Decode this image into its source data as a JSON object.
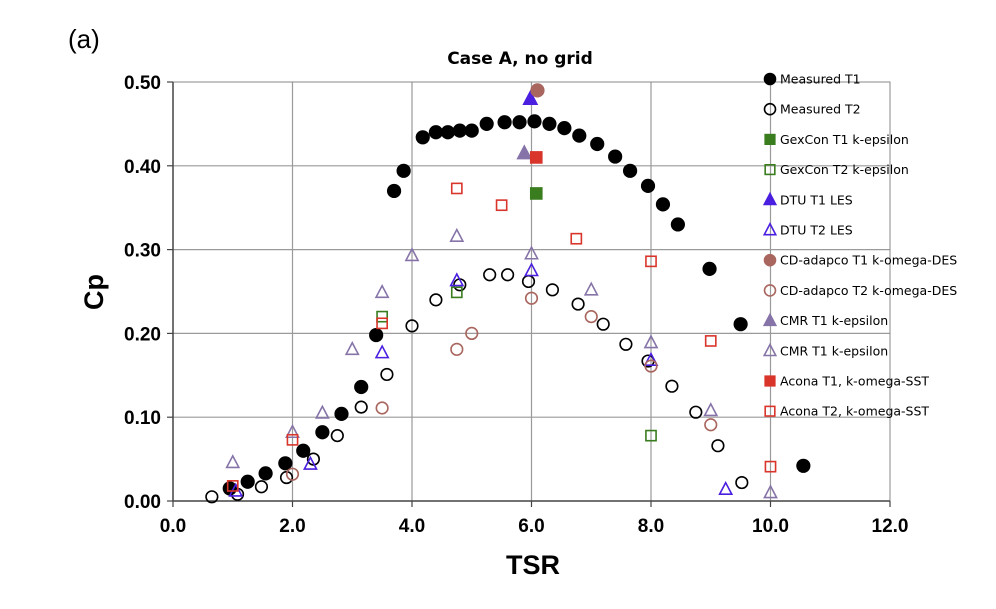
{
  "panel_label": "(a)",
  "chart_data": {
    "type": "scatter",
    "title": "Case A, no grid",
    "xlabel": "TSR",
    "ylabel": "Cp",
    "xlim": [
      0,
      12
    ],
    "ylim": [
      0,
      0.5
    ],
    "x_ticks": [
      0,
      2,
      4,
      6,
      8,
      10,
      12
    ],
    "y_ticks": [
      0,
      0.1,
      0.2,
      0.3,
      0.4,
      0.5
    ],
    "x_tick_labels": [
      "0.0",
      "2.0",
      "4.0",
      "6.0",
      "8.0",
      "10.0",
      "12.0"
    ],
    "y_tick_labels": [
      "0.00",
      "0.10",
      "0.20",
      "0.30",
      "0.40",
      "0.50"
    ],
    "grid": true,
    "legend_position": "right",
    "series": [
      {
        "name": "Measured T1",
        "marker": "circle",
        "filled": true,
        "color": "#000000",
        "points": [
          [
            0.95,
            0.015
          ],
          [
            1.25,
            0.023
          ],
          [
            1.55,
            0.033
          ],
          [
            1.88,
            0.045
          ],
          [
            2.18,
            0.06
          ],
          [
            2.5,
            0.082
          ],
          [
            2.82,
            0.104
          ],
          [
            3.15,
            0.136
          ],
          [
            3.4,
            0.198
          ],
          [
            3.7,
            0.37
          ],
          [
            3.86,
            0.394
          ],
          [
            4.18,
            0.434
          ],
          [
            4.4,
            0.44
          ],
          [
            4.6,
            0.44
          ],
          [
            4.8,
            0.442
          ],
          [
            5.0,
            0.442
          ],
          [
            5.25,
            0.45
          ],
          [
            5.55,
            0.452
          ],
          [
            5.8,
            0.452
          ],
          [
            6.05,
            0.453
          ],
          [
            6.3,
            0.45
          ],
          [
            6.55,
            0.445
          ],
          [
            6.8,
            0.436
          ],
          [
            7.1,
            0.426
          ],
          [
            7.4,
            0.411
          ],
          [
            7.65,
            0.394
          ],
          [
            7.95,
            0.376
          ],
          [
            8.2,
            0.354
          ],
          [
            8.45,
            0.33
          ],
          [
            8.98,
            0.277
          ],
          [
            9.5,
            0.211
          ],
          [
            10.55,
            0.042
          ]
        ]
      },
      {
        "name": "Measured T2",
        "marker": "circle",
        "filled": false,
        "color": "#000000",
        "points": [
          [
            0.65,
            0.005
          ],
          [
            1.08,
            0.008
          ],
          [
            1.48,
            0.017
          ],
          [
            1.9,
            0.028
          ],
          [
            2.35,
            0.05
          ],
          [
            2.75,
            0.078
          ],
          [
            3.15,
            0.112
          ],
          [
            3.58,
            0.151
          ],
          [
            4.0,
            0.209
          ],
          [
            4.4,
            0.24
          ],
          [
            4.8,
            0.258
          ],
          [
            5.3,
            0.27
          ],
          [
            5.6,
            0.27
          ],
          [
            5.95,
            0.262
          ],
          [
            6.35,
            0.252
          ],
          [
            6.78,
            0.235
          ],
          [
            7.2,
            0.211
          ],
          [
            7.58,
            0.187
          ],
          [
            7.95,
            0.167
          ],
          [
            8.35,
            0.137
          ],
          [
            8.75,
            0.106
          ],
          [
            9.12,
            0.066
          ],
          [
            9.52,
            0.022
          ]
        ]
      },
      {
        "name": "GexCon T1 k-epsilon",
        "marker": "square",
        "filled": true,
        "color": "#3a7d1f",
        "points": [
          [
            6.08,
            0.367
          ]
        ]
      },
      {
        "name": "GexCon T2 k-epsilon",
        "marker": "square",
        "filled": false,
        "color": "#3a7d1f",
        "points": [
          [
            3.5,
            0.22
          ],
          [
            4.75,
            0.249
          ],
          [
            8.0,
            0.078
          ]
        ]
      },
      {
        "name": "DTU T1 LES",
        "marker": "triangle",
        "filled": true,
        "color": "#4b1fe0",
        "points": [
          [
            5.98,
            0.48
          ]
        ]
      },
      {
        "name": "DTU T2 LES",
        "marker": "triangle",
        "filled": false,
        "color": "#4b1fe0",
        "points": [
          [
            1.05,
            0.012
          ],
          [
            2.3,
            0.044
          ],
          [
            3.5,
            0.177
          ],
          [
            4.75,
            0.263
          ],
          [
            6.0,
            0.275
          ],
          [
            8.0,
            0.168
          ],
          [
            9.25,
            0.014
          ]
        ]
      },
      {
        "name": "CD-adapco T1 k-omega-DES",
        "marker": "circle",
        "filled": true,
        "color": "#a9665e",
        "points": [
          [
            6.1,
            0.49
          ]
        ]
      },
      {
        "name": "CD-adapco T2 k-omega-DES",
        "marker": "circle",
        "filled": false,
        "color": "#a9665e",
        "points": [
          [
            2.0,
            0.032
          ],
          [
            3.5,
            0.111
          ],
          [
            4.75,
            0.181
          ],
          [
            5.0,
            0.2
          ],
          [
            6.0,
            0.242
          ],
          [
            7.0,
            0.22
          ],
          [
            8.0,
            0.161
          ],
          [
            9.0,
            0.091
          ]
        ]
      },
      {
        "name": "CMR T1 k-epsilon",
        "marker": "triangle",
        "filled": true,
        "color": "#8674a8",
        "points": [
          [
            5.88,
            0.415
          ]
        ]
      },
      {
        "name": "CMR T1 k-epsilon",
        "marker": "triangle",
        "filled": false,
        "color": "#8674a8",
        "points": [
          [
            1.0,
            0.046
          ],
          [
            2.0,
            0.082
          ],
          [
            2.5,
            0.105
          ],
          [
            3.0,
            0.181
          ],
          [
            3.5,
            0.249
          ],
          [
            4.0,
            0.293
          ],
          [
            4.75,
            0.316
          ],
          [
            6.0,
            0.295
          ],
          [
            7.0,
            0.252
          ],
          [
            8.0,
            0.189
          ],
          [
            9.0,
            0.108
          ],
          [
            10.0,
            0.01
          ]
        ]
      },
      {
        "name": "Acona T1,  k-omega-SST",
        "marker": "square",
        "filled": true,
        "color": "#d9352b",
        "points": [
          [
            6.08,
            0.41
          ]
        ]
      },
      {
        "name": "Acona T2,  k-omega-SST",
        "marker": "square",
        "filled": false,
        "color": "#d9352b",
        "points": [
          [
            1.0,
            0.018
          ],
          [
            2.0,
            0.073
          ],
          [
            3.5,
            0.212
          ],
          [
            4.75,
            0.373
          ],
          [
            5.5,
            0.353
          ],
          [
            6.75,
            0.313
          ],
          [
            8.0,
            0.286
          ],
          [
            9.0,
            0.191
          ],
          [
            10.0,
            0.041
          ]
        ]
      }
    ]
  }
}
